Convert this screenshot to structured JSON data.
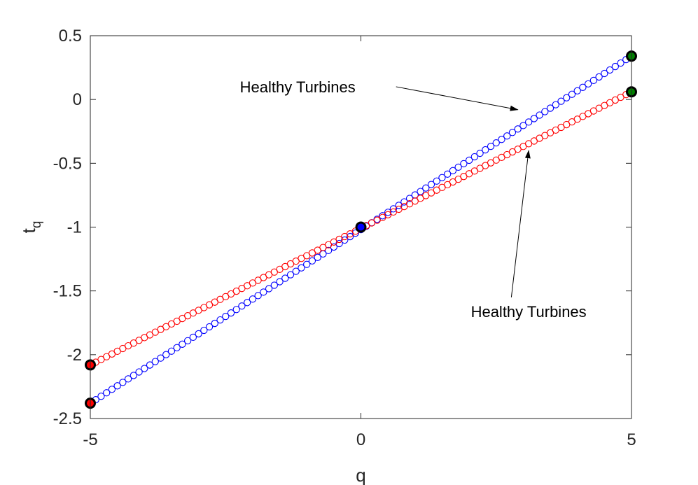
{
  "chart_data": {
    "type": "scatter",
    "title": "",
    "xlabel": "q",
    "ylabel_main": "t",
    "ylabel_sub": "q",
    "xlim": [
      -5,
      5
    ],
    "ylim": [
      -2.5,
      0.5
    ],
    "x_ticks": [
      -5,
      0,
      5
    ],
    "x_tick_labels": [
      "-5",
      "0",
      "5"
    ],
    "y_ticks": [
      0.5,
      0,
      -0.5,
      -1,
      -1.5,
      -2,
      -2.5
    ],
    "y_tick_labels": [
      "0.5",
      "0",
      "-0.5",
      "-1",
      "-1.5",
      "-2",
      "-2.5"
    ],
    "grid": false,
    "box": true,
    "series": [
      {
        "color": "#0000ff",
        "marker": "open-circle",
        "x_start": -5,
        "x_end": 5,
        "x_step": 0.1,
        "y_start": -2.38,
        "y_end": 0.34,
        "highlights": [
          {
            "x": -5,
            "y": -2.38,
            "fill": "#ff0000",
            "edge": "#000000"
          },
          {
            "x": 0,
            "y": -1.0,
            "fill": "#0000ff",
            "edge": "#000000"
          },
          {
            "x": 5,
            "y": 0.34,
            "fill": "#008000",
            "edge": "#000000"
          }
        ]
      },
      {
        "color": "#ff0000",
        "marker": "open-circle",
        "x_start": -5,
        "x_end": 5,
        "x_step": 0.1,
        "y_start": -2.08,
        "y_end": 0.06,
        "highlights": [
          {
            "x": -5,
            "y": -2.08,
            "fill": "#ff0000",
            "edge": "#000000"
          },
          {
            "x": 5,
            "y": 0.06,
            "fill": "#008000",
            "edge": "#000000"
          }
        ]
      }
    ],
    "annotations": [
      {
        "text": "Healthy Turbines",
        "text_x": -0.1,
        "text_y": 0.1,
        "anchor": "end",
        "arrow_from_x": 0.65,
        "arrow_from_y": 0.1,
        "arrow_to_x": 2.9,
        "arrow_to_y": -0.08
      },
      {
        "text": "Healthy Turbines",
        "text_x": 3.1,
        "text_y": -1.66,
        "anchor": "middle",
        "arrow_from_x": 2.78,
        "arrow_from_y": -1.55,
        "arrow_to_x": 3.1,
        "arrow_to_y": -0.4
      }
    ]
  }
}
